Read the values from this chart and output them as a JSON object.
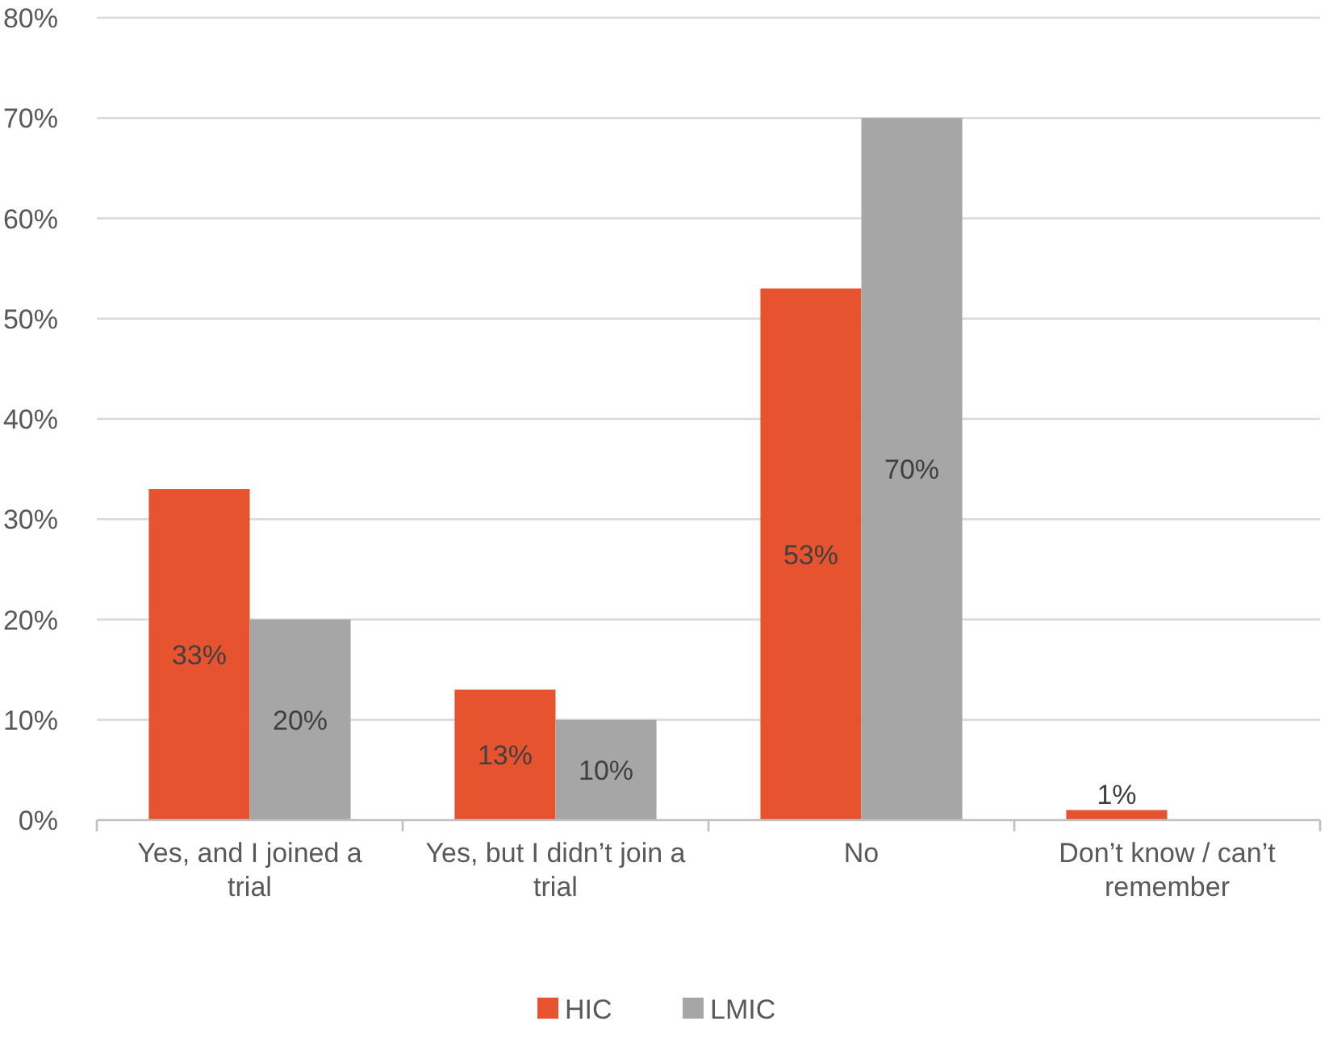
{
  "chart_data": {
    "type": "bar",
    "categories": [
      "Yes, and I joined a trial",
      "Yes, but I didn’t join a trial",
      "No",
      "Don’t know / can’t remember"
    ],
    "series": [
      {
        "name": "HIC",
        "color": "#e8532f",
        "values": [
          33,
          13,
          53,
          1
        ],
        "value_labels": [
          "33%",
          "13%",
          "53%",
          "1%"
        ]
      },
      {
        "name": "LMIC",
        "color": "#a6a6a6",
        "values": [
          20,
          10,
          70,
          null
        ],
        "value_labels": [
          "20%",
          "10%",
          "70%",
          null
        ]
      }
    ],
    "ylim": [
      0,
      80
    ],
    "yticks": [
      {
        "value": 0,
        "label": "0%"
      },
      {
        "value": 10,
        "label": "10%"
      },
      {
        "value": 20,
        "label": "20%"
      },
      {
        "value": 30,
        "label": "30%"
      },
      {
        "value": 40,
        "label": "40%"
      },
      {
        "value": 50,
        "label": "50%"
      },
      {
        "value": 60,
        "label": "60%"
      },
      {
        "value": 70,
        "label": "70%"
      },
      {
        "value": 80,
        "label": "80%"
      }
    ],
    "grid": "y",
    "legend": "bottom"
  }
}
